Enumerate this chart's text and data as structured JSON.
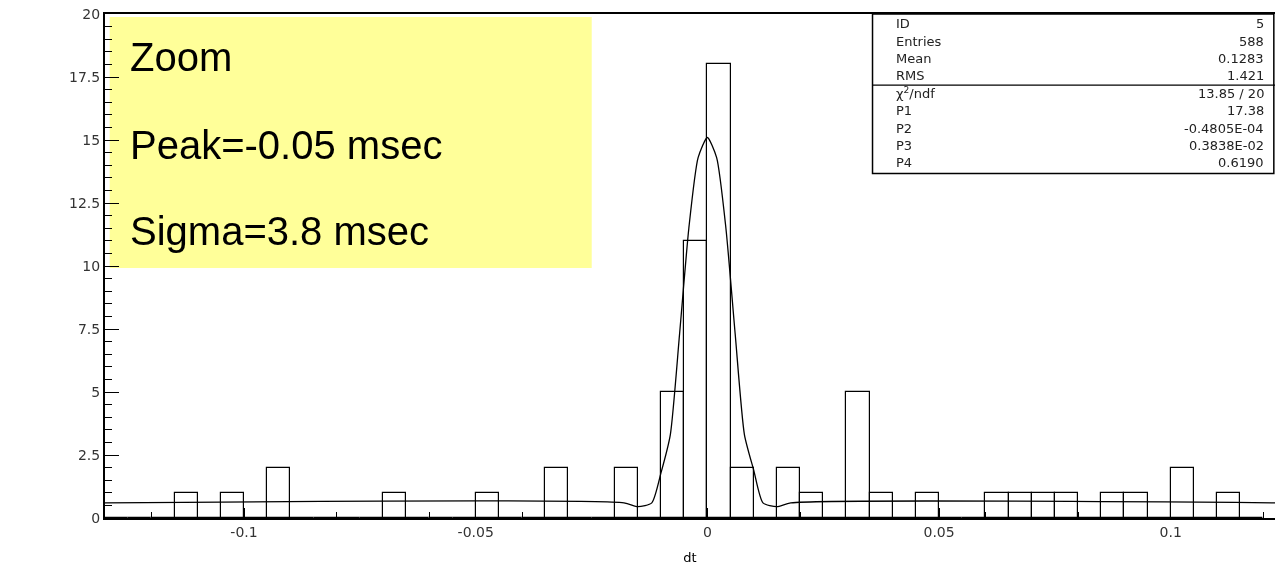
{
  "chart_data": {
    "type": "histogram",
    "xlabel": "dt",
    "color": "#000000",
    "bins": [
      -0.13,
      -0.125,
      -0.12,
      -0.115,
      -0.11,
      -0.105,
      -0.1,
      -0.095,
      -0.09,
      -0.085,
      -0.08,
      -0.075,
      -0.07,
      -0.065,
      -0.06,
      -0.055,
      -0.05,
      -0.045,
      -0.04,
      -0.035,
      -0.03,
      -0.025,
      -0.02,
      -0.015,
      -0.01,
      -0.005,
      0,
      0.005,
      0.01,
      0.015,
      0.02,
      0.025,
      0.03,
      0.035,
      0.04,
      0.045,
      0.05,
      0.055,
      0.06,
      0.065,
      0.07,
      0.075,
      0.08,
      0.085,
      0.09,
      0.095,
      0.1,
      0.105,
      0.11,
      0.115,
      0.12
    ],
    "values": [
      0,
      0,
      0,
      1,
      0,
      1,
      0,
      2,
      0,
      0,
      0,
      0,
      1,
      0,
      0,
      0,
      1,
      0,
      0,
      2,
      0,
      0,
      2,
      0,
      5,
      11,
      18,
      2,
      0,
      2,
      1,
      0,
      5,
      1,
      0,
      1,
      0,
      0,
      1,
      1,
      1,
      1,
      0,
      1,
      1,
      0,
      2,
      0,
      1,
      0
    ],
    "series": [
      {
        "type": "line",
        "color": "#000000",
        "x": [
          -0.13,
          -0.018,
          -0.015,
          -0.012,
          -0.01,
          -0.008,
          -0.006,
          -0.004,
          -0.002,
          0,
          0.002,
          0.004,
          0.006,
          0.008,
          0.01,
          0.012,
          0.015,
          0.018,
          0.1225
        ],
        "values": [
          0.6,
          0.6,
          0.45,
          0.6,
          1.8,
          3.3,
          7.3,
          11.5,
          14.3,
          15.1,
          14.3,
          11.5,
          7.3,
          3.3,
          1.9,
          0.6,
          0.45,
          0.6,
          0.6
        ]
      }
    ],
    "xlim": [
      -0.13,
      0.1225
    ],
    "xticks": [
      -0.1,
      -0.05,
      0,
      0.05,
      0.1
    ],
    "ylim": [
      0,
      20
    ],
    "yticks": [
      0,
      2.5,
      5,
      7.5,
      10,
      12.5,
      15,
      17.5,
      20
    ],
    "grid": false,
    "annotations": [
      "Zoom",
      "Peak=-0.05 msec",
      "Sigma=3.8 msec",
      "ID",
      "5",
      "Entries",
      "588",
      "Mean",
      "0.1283",
      "RMS",
      "1.421",
      "χ$^{2}$/ndf",
      "13.85 / 20",
      "P1",
      "17.38",
      "P2",
      "-0.4805E-04",
      "P3",
      "0.3838E-02",
      "P4",
      "0.6190"
    ]
  }
}
